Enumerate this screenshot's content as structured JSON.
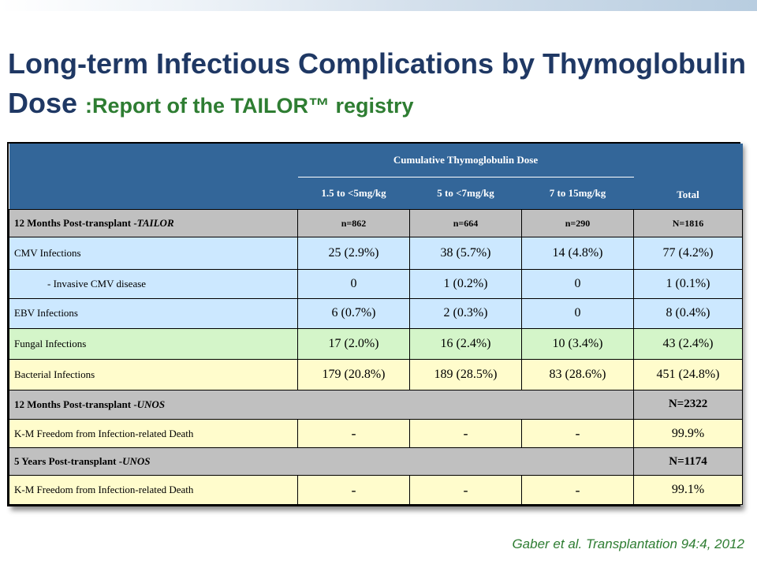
{
  "title": {
    "main": "Long-term Infectious Complications by Thymoglobulin Dose",
    "sub": ":Report of the TAILOR™ registry"
  },
  "table": {
    "group_header": "Cumulative Thymoglobulin Dose",
    "columns": [
      "1.5 to <5mg/kg",
      "5 to <7mg/kg",
      "7 to 15mg/kg"
    ],
    "total_header": "Total",
    "tailor": {
      "label_prefix": "12 Months Post-transplant -",
      "label_source": "TAILOR",
      "counts": [
        "n=862",
        "n=664",
        "n=290",
        "N=1816"
      ]
    },
    "rows": [
      {
        "label": "CMV Infections",
        "values": [
          "25 (2.9%)",
          "38 (5.7%)",
          "14 (4.8%)",
          "77 (4.2%)"
        ]
      },
      {
        "label": "- Invasive CMV disease",
        "values": [
          "0",
          "1 (0.2%)",
          "0",
          "1 (0.1%)"
        ]
      },
      {
        "label": "EBV Infections",
        "values": [
          "6 (0.7%)",
          "2 (0.3%)",
          "0",
          "8 (0.4%)"
        ]
      },
      {
        "label": "Fungal Infections",
        "values": [
          "17 (2.0%)",
          "16 (2.4%)",
          "10 (3.4%)",
          "43 (2.4%)"
        ]
      },
      {
        "label": "Bacterial Infections",
        "values": [
          "179 (20.8%)",
          "189 (28.5%)",
          "83 (28.6%)",
          "451 (24.8%)"
        ]
      }
    ],
    "unos12": {
      "label_prefix": "12 Months Post-transplant -",
      "label_source": "UNOS",
      "total": "N=2322",
      "row": {
        "label": "K-M Freedom from Infection-related Death",
        "values": [
          "-",
          "-",
          "-",
          "99.9%"
        ]
      }
    },
    "unos5": {
      "label_prefix": "5 Years Post-transplant -",
      "label_source": "UNOS",
      "total": "N=1174",
      "row": {
        "label": "K-M Freedom from Infection-related Death",
        "values": [
          "-",
          "-",
          "-",
          "99.1%"
        ]
      }
    }
  },
  "citation": "Gaber et al. Transplantation 94:4, 2012",
  "colors": {
    "title": "#1f3864",
    "subtitle": "#2e7d32",
    "header_bg": "#336699",
    "section_bg": "#c0c0c0",
    "row_blue": "#cce8ff",
    "row_green": "#d4f5c9",
    "row_yellow": "#fffccc"
  }
}
